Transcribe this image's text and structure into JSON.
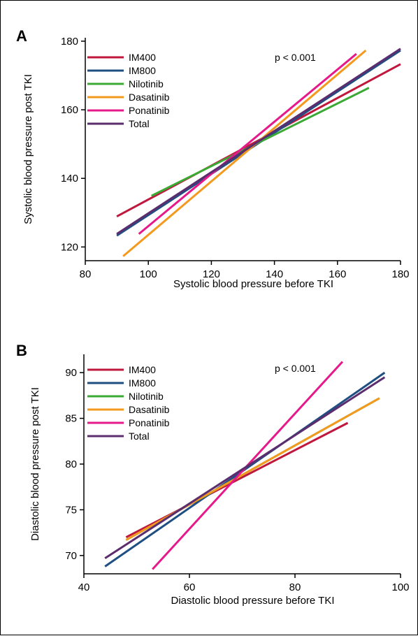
{
  "chart_data": [
    {
      "panel": "A",
      "type": "line",
      "xlabel": "Systolic blood pressure before TKI",
      "ylabel": "Systolic blood pressure post TKI",
      "xlim": [
        80,
        180
      ],
      "ylim": [
        116,
        181
      ],
      "xticks": [
        80,
        100,
        120,
        140,
        160,
        180
      ],
      "yticks": [
        120,
        140,
        160,
        180
      ],
      "annotation": "p < 0.001",
      "legend_position": "top-left",
      "series": [
        {
          "name": "IM400",
          "color": "#c0183c",
          "x": [
            90,
            180
          ],
          "y": [
            128.9,
            173.3
          ]
        },
        {
          "name": "IM800",
          "color": "#1f4f82",
          "x": [
            90,
            180
          ],
          "y": [
            123.3,
            177.3
          ]
        },
        {
          "name": "Nilotinib",
          "color": "#3aaa35",
          "x": [
            101,
            170
          ],
          "y": [
            134.9,
            166.4
          ]
        },
        {
          "name": "Dasatinib",
          "color": "#f39a1e",
          "x": [
            92,
            169
          ],
          "y": [
            117.3,
            177.3
          ]
        },
        {
          "name": "Ponatinib",
          "color": "#e6198a",
          "x": [
            97,
            166
          ],
          "y": [
            123.8,
            176.3
          ]
        },
        {
          "name": "Total",
          "color": "#5b2d6e",
          "x": [
            90,
            180
          ],
          "y": [
            123.8,
            177.8
          ]
        }
      ]
    },
    {
      "panel": "B",
      "type": "line",
      "xlabel": "Diastolic blood pressure before TKI",
      "ylabel": "Diastolic blood pressure post TKI",
      "xlim": [
        40,
        100
      ],
      "ylim": [
        68,
        92
      ],
      "xticks": [
        40,
        60,
        80,
        100
      ],
      "yticks": [
        70,
        75,
        80,
        85,
        90
      ],
      "annotation": "p < 0.001",
      "legend_position": "top-left",
      "series": [
        {
          "name": "IM400",
          "color": "#c0183c",
          "x": [
            48,
            90
          ],
          "y": [
            72.0,
            84.5
          ]
        },
        {
          "name": "IM800",
          "color": "#1f4f82",
          "x": [
            44,
            97
          ],
          "y": [
            68.8,
            90.0
          ]
        },
        {
          "name": "Nilotinib",
          "color": "#3aaa35",
          "x": [
            48,
            96
          ],
          "y": [
            71.7,
            87.2
          ]
        },
        {
          "name": "Dasatinib",
          "color": "#f39a1e",
          "x": [
            48,
            96
          ],
          "y": [
            71.7,
            87.2
          ]
        },
        {
          "name": "Ponatinib",
          "color": "#e6198a",
          "x": [
            53,
            89
          ],
          "y": [
            68.5,
            91.2
          ]
        },
        {
          "name": "Total",
          "color": "#5b2d6e",
          "x": [
            44,
            97
          ],
          "y": [
            69.7,
            89.5
          ]
        }
      ]
    }
  ]
}
